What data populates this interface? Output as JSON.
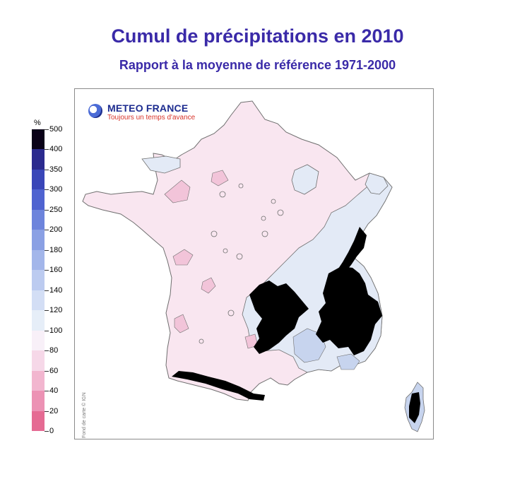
{
  "header": {
    "title": "Cumul de précipitations en 2010",
    "subtitle": "Rapport à la moyenne de référence 1971-2000"
  },
  "legend": {
    "unit": "%",
    "labels": [
      "500",
      "400",
      "350",
      "300",
      "250",
      "200",
      "180",
      "160",
      "140",
      "120",
      "100",
      "80",
      "60",
      "40",
      "20",
      "0"
    ],
    "colors_top_to_bottom": [
      "#0a0218",
      "#2b2a8e",
      "#3946b8",
      "#4f63d0",
      "#6d84dc",
      "#8aa0e4",
      "#a3b6ea",
      "#bccbf0",
      "#d3def5",
      "#e6eef8",
      "#f8f0f8",
      "#f6d8e8",
      "#f2b6cf",
      "#ec92b4",
      "#e56b93"
    ]
  },
  "map": {
    "colors": {
      "pink_light": "#f9e6f0",
      "pink_mid": "#f2c4d9",
      "blue_light": "#e3eaf6",
      "blue_mid": "#c7d4ee",
      "blue_deep": "#9db0e0",
      "black": "#000000",
      "outline": "#6f6f6f"
    }
  },
  "logo": {
    "name": "METEO FRANCE",
    "tagline": "Toujours un temps d'avance"
  },
  "credit": "Fond de carte © IGN"
}
